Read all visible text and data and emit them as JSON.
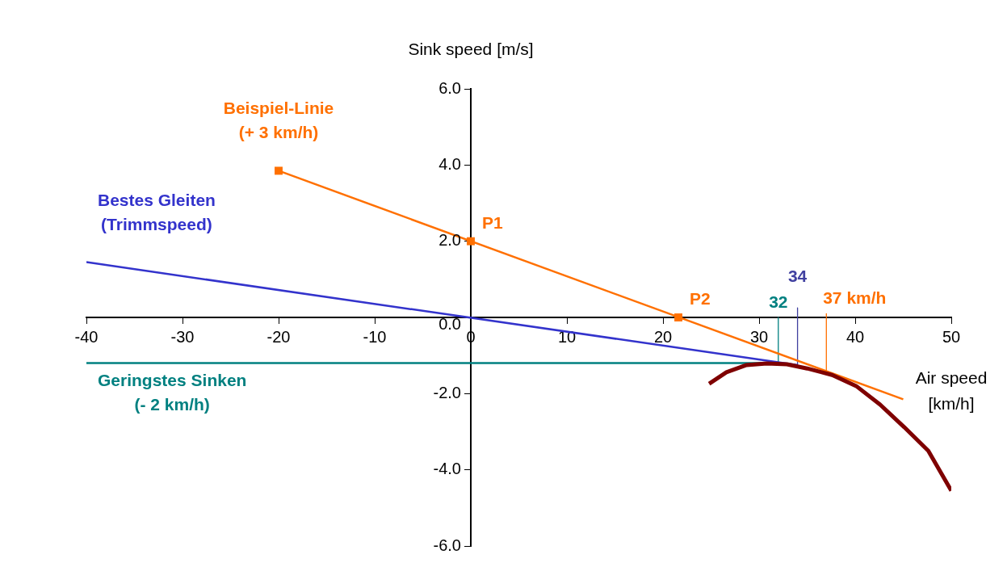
{
  "chart_data": {
    "type": "line",
    "xlabel": "Air speed\n[km/h]",
    "ylabel": "Sink speed [m/s]",
    "xlim": [
      -40,
      50
    ],
    "xticks": [
      -40,
      -30,
      -20,
      -10,
      0,
      10,
      20,
      30,
      40,
      50
    ],
    "ylim": [
      -6,
      6
    ],
    "yticks": [
      {
        "value": -6,
        "label": "-6.0"
      },
      {
        "value": -4,
        "label": "-4.0"
      },
      {
        "value": -2,
        "label": "-2.0"
      },
      {
        "value": 0,
        "label": "0.0"
      },
      {
        "value": 2,
        "label": "2.0"
      },
      {
        "value": 4,
        "label": "4.0"
      },
      {
        "value": 6,
        "label": "6.0"
      }
    ],
    "grid": false,
    "legend": false,
    "marker": "none",
    "series": [
      {
        "color": "#7f0000",
        "x": [
          24.8,
          26.6,
          28.7,
          30.8,
          32.9,
          35.0,
          37.6,
          40.1,
          42.6,
          45.1,
          47.6,
          50
        ],
        "values": [
          -1.74,
          -1.44,
          -1.25,
          -1.21,
          -1.23,
          -1.34,
          -1.51,
          -1.8,
          -2.29,
          -2.88,
          -3.5,
          -4.55
        ]
      },
      {
        "name": "Geringstes Sinken\n(- 2 km/h)",
        "color": "#008080",
        "x": [
          -40,
          32
        ],
        "values": [
          -1.2,
          -1.2
        ]
      },
      {
        "name": "Bestes Gleiten\n(Trimmspeed)",
        "color": "#3333cc",
        "x": [
          -40,
          34
        ],
        "values": [
          1.45,
          -1.25
        ]
      },
      {
        "name": "Beispiel-Linie\n(+ 3 km/h)",
        "color": "#ff7000",
        "x": [
          -20,
          45
        ],
        "values": [
          3.85,
          -2.15
        ]
      },
      {
        "type": "scatter",
        "marker": "square",
        "color": "#ff7000",
        "x": [
          -20,
          0,
          21.6
        ],
        "values": [
          3.85,
          2,
          0
        ]
      },
      {
        "color": "#008080",
        "x": [
          32,
          32
        ],
        "values": [
          0,
          -1.2
        ]
      },
      {
        "color": "#4040a0",
        "x": [
          34,
          34
        ],
        "values": [
          0.25,
          -1.25
        ]
      },
      {
        "color": "#ff7000",
        "x": [
          37,
          37
        ],
        "values": [
          0.1,
          -1.5
        ]
      }
    ],
    "annotations": [
      {
        "text": "P1",
        "x": 0,
        "y": 2
      },
      {
        "text": "P2",
        "x": 21.6,
        "y": 0
      },
      {
        "text": "32",
        "x": 32,
        "y": 0
      },
      {
        "text": "34",
        "x": 34,
        "y": 0.25
      },
      {
        "text": "37 km/h",
        "x": 37,
        "y": 0.1
      }
    ]
  }
}
